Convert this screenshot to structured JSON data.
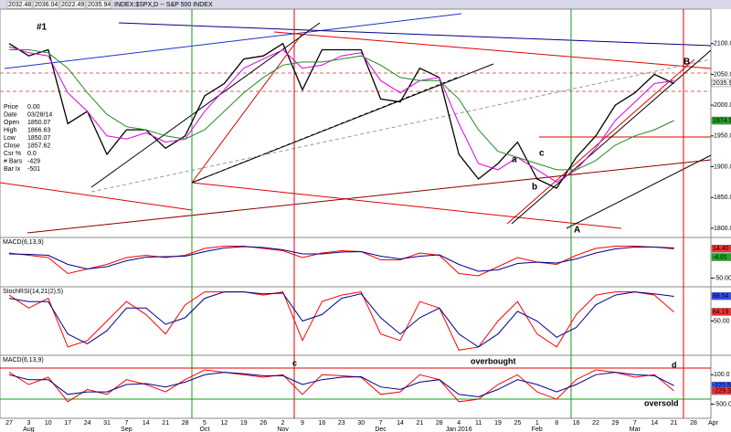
{
  "chart_data": [
    {
      "type": "line",
      "title": "INDEX:$SPX,D -- S&P 500 INDEX",
      "quote": [
        2032.48,
        2036.04,
        2022.49,
        2035.94
      ],
      "ylim": [
        1788,
        2153
      ],
      "yticks": [
        {
          "value": 2100,
          "label": "2100.0"
        },
        {
          "value": 2050,
          "label": "2050.0"
        },
        {
          "value": 2000,
          "label": "2000.0"
        },
        {
          "value": 1950,
          "label": "1950.0"
        },
        {
          "value": 1900,
          "label": "1900.0"
        },
        {
          "value": 1850,
          "label": "1850.0"
        },
        {
          "value": 1800,
          "label": "1800.0"
        }
      ],
      "tags": [
        {
          "value": 2035.9,
          "label": "2035.9",
          "color": "#ffffff"
        },
        {
          "value": 1974.9,
          "label": "1974.9",
          "color": "#22aa22"
        }
      ],
      "annotations": [
        "#1",
        "a",
        "b",
        "c",
        "A",
        "B"
      ],
      "series": [
        {
          "color": "#000000",
          "values": [
            2100,
            2080,
            2090,
            1970,
            1990,
            1920,
            1960,
            1960,
            1930,
            1950,
            2015,
            2035,
            2075,
            2080,
            2100,
            2025,
            2090,
            2090,
            2090,
            2010,
            2005,
            2060,
            2045,
            1920,
            1880,
            1905,
            1940,
            1880,
            1865,
            1915,
            1950,
            2000,
            2020,
            2050,
            2035,
            null,
            null
          ]
        },
        {
          "color": "#e000e0",
          "values": [
            2095,
            2085,
            2080,
            2020,
            1990,
            1950,
            1945,
            1955,
            1940,
            1945,
            1990,
            2025,
            2060,
            2075,
            2090,
            2060,
            2065,
            2080,
            2085,
            2040,
            2020,
            2040,
            2045,
            1970,
            1905,
            1895,
            1915,
            1895,
            1875,
            1895,
            1930,
            1975,
            2005,
            2035,
            2040,
            null,
            null
          ]
        },
        {
          "color": "#228b22",
          "values": [
            2090,
            2090,
            2085,
            2060,
            2020,
            1985,
            1965,
            1960,
            1950,
            1945,
            1960,
            1990,
            2020,
            2045,
            2065,
            2070,
            2070,
            2075,
            2080,
            2065,
            2045,
            2040,
            2040,
            2010,
            1960,
            1925,
            1915,
            1905,
            1895,
            1895,
            1910,
            1935,
            1950,
            1960,
            1975,
            null,
            null
          ]
        }
      ]
    },
    {
      "type": "line",
      "title": "MACD(6,13,9)",
      "ylim": [
        -65,
        35
      ],
      "yticks": [
        {
          "value": -50,
          "label": "-50.00"
        }
      ],
      "tags": [
        {
          "value": 14.4,
          "label": "14.40",
          "color": "#ff3030"
        },
        {
          "value": -4.01,
          "label": "-4.01",
          "color": "#22aa22"
        }
      ],
      "series": [
        {
          "color": "#ff0000",
          "values": [
            5,
            0,
            -5,
            -40,
            -30,
            -20,
            -5,
            0,
            -5,
            0,
            15,
            20,
            20,
            15,
            10,
            -5,
            5,
            10,
            8,
            -10,
            -10,
            5,
            0,
            -40,
            -45,
            -25,
            -5,
            -15,
            -20,
            0,
            15,
            20,
            20,
            18,
            14,
            null,
            null
          ]
        },
        {
          "color": "#00008b",
          "values": [
            3,
            2,
            0,
            -20,
            -30,
            -25,
            -12,
            -4,
            -3,
            -2,
            8,
            16,
            19,
            17,
            12,
            3,
            3,
            7,
            8,
            -2,
            -8,
            -2,
            1,
            -20,
            -35,
            -32,
            -18,
            -15,
            -17,
            -8,
            5,
            14,
            18,
            18,
            16,
            null,
            null
          ]
        }
      ]
    },
    {
      "type": "line",
      "title": "StochRSI(14,21(2),5)",
      "ylim": [
        0,
        100
      ],
      "yticks": [
        {
          "value": 50,
          "label": "50.00"
        }
      ],
      "tags": [
        {
          "value": 88.54,
          "label": "88.54",
          "color": "#3050ff"
        },
        {
          "value": 64.19,
          "label": "64.19",
          "color": "#ff3030"
        }
      ],
      "series": [
        {
          "color": "#ff0000",
          "values": [
            90,
            70,
            85,
            10,
            20,
            50,
            80,
            60,
            30,
            75,
            95,
            95,
            95,
            90,
            95,
            20,
            80,
            90,
            95,
            30,
            20,
            80,
            70,
            5,
            10,
            50,
            80,
            30,
            10,
            60,
            90,
            95,
            95,
            90,
            64,
            null,
            null
          ]
        },
        {
          "color": "#00008b",
          "values": [
            85,
            80,
            80,
            30,
            15,
            35,
            70,
            70,
            45,
            55,
            85,
            95,
            95,
            92,
            93,
            50,
            60,
            85,
            92,
            55,
            30,
            55,
            70,
            30,
            10,
            30,
            65,
            50,
            25,
            40,
            75,
            90,
            95,
            92,
            88,
            null,
            null
          ]
        }
      ]
    },
    {
      "type": "line",
      "title": "MACD(6,13,9)",
      "ylim": [
        -770,
        460
      ],
      "yticks": [
        {
          "value": 100,
          "label": "100.0"
        },
        {
          "value": -500,
          "label": "-500.0"
        }
      ],
      "tags": [
        {
          "value": -121.5,
          "label": "-121.5",
          "color": "#3050ff"
        },
        {
          "value": -229.3,
          "label": "-229.3",
          "color": "#ff3030"
        }
      ],
      "annotations": [
        "c",
        "overbought",
        "d",
        "oversold"
      ],
      "categories": [
        "27",
        "3",
        "10",
        "17",
        "24",
        "31",
        "7",
        "14",
        "21",
        "28",
        "5",
        "12",
        "19",
        "26",
        "2",
        "9",
        "16",
        "23",
        "30",
        "7",
        "14",
        "21",
        "28",
        "4",
        "11",
        "19",
        "25",
        "1",
        "8",
        "16",
        "22",
        "29",
        "7",
        "14",
        "21",
        "28",
        "Apr"
      ],
      "month_labels": [
        null,
        "Aug",
        null,
        null,
        null,
        null,
        "Sep",
        null,
        null,
        null,
        "Oct",
        null,
        null,
        null,
        "Nov",
        null,
        null,
        null,
        null,
        "Dec",
        null,
        null,
        null,
        "Jan 2016",
        null,
        null,
        null,
        "Feb",
        null,
        null,
        null,
        null,
        "Mar",
        null,
        null,
        null,
        null
      ],
      "series": [
        {
          "color": "#ff0000",
          "values": [
            150,
            -100,
            50,
            -450,
            -200,
            -300,
            0,
            -100,
            -250,
            0,
            200,
            150,
            100,
            50,
            100,
            -300,
            100,
            80,
            50,
            -300,
            -250,
            100,
            0,
            -450,
            -400,
            -100,
            100,
            -250,
            -400,
            0,
            200,
            150,
            50,
            100,
            -229,
            null,
            null
          ]
        },
        {
          "color": "#00008b",
          "values": [
            100,
            0,
            0,
            -300,
            -250,
            -250,
            -100,
            -80,
            -150,
            -50,
            100,
            150,
            120,
            80,
            80,
            -100,
            0,
            50,
            60,
            -150,
            -200,
            -50,
            0,
            -300,
            -350,
            -200,
            0,
            -100,
            -250,
            -100,
            100,
            150,
            100,
            80,
            -121.5,
            null,
            null
          ]
        }
      ]
    }
  ],
  "info_panel": [
    [
      "Price",
      "0.00"
    ],
    [
      "Date",
      "03/28/14"
    ],
    [
      "Open",
      "1850.07"
    ],
    [
      "High",
      "1866.63"
    ],
    [
      "Low",
      "1850.07"
    ],
    [
      "Close",
      "1857.62"
    ],
    [
      "Csr %",
      "0.0"
    ],
    [
      "# Bars",
      "-429"
    ],
    [
      "Bar Ix",
      "-501"
    ]
  ]
}
